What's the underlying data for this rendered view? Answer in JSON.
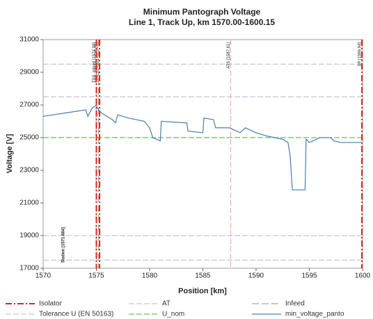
{
  "chart_data": {
    "type": "line",
    "title": "Minimum Pantograph Voltage",
    "subtitle": "Line 1, Track Up, km 1570.00-1600.15",
    "x_label": "Position [km]",
    "y_label": "Voltage [V]",
    "xlim": [
      1570,
      1600
    ],
    "ylim": [
      17000,
      31000
    ],
    "xticks": [
      1570,
      1575,
      1580,
      1585,
      1590,
      1595,
      1600
    ],
    "yticks": [
      17000,
      19000,
      21000,
      23000,
      25000,
      27000,
      29000,
      31000
    ],
    "x": [
      1570,
      1572,
      1574,
      1574.2,
      1574.6,
      1575,
      1575.1,
      1575.5,
      1576,
      1576.5,
      1576.8,
      1577,
      1578,
      1579.5,
      1580,
      1580.3,
      1581,
      1581.1,
      1583.5,
      1583.6,
      1585,
      1585.1,
      1586,
      1586.2,
      1587.5,
      1588.5,
      1589,
      1590,
      1591,
      1592.5,
      1593,
      1593.2,
      1593.4,
      1594.6,
      1594.7,
      1595,
      1596,
      1597,
      1597.3,
      1598,
      1600
    ],
    "series": [
      {
        "name": "min_voltage_panto",
        "color": "#4a7ab0",
        "values": [
          26300,
          26500,
          26700,
          26300,
          26800,
          27000,
          26800,
          26500,
          26300,
          26100,
          25900,
          26400,
          26200,
          26000,
          25600,
          25000,
          24800,
          26000,
          25900,
          25400,
          25300,
          26200,
          26100,
          25600,
          25600,
          25300,
          25600,
          25300,
          25100,
          24900,
          24700,
          23900,
          21800,
          21800,
          24900,
          24700,
          25000,
          25000,
          24800,
          24700,
          24700
        ]
      }
    ],
    "reference_styles": [
      {
        "name": "Isolator",
        "color": "#e0201c",
        "dash": "9 3 2 3",
        "width": 2
      },
      {
        "name": "AT",
        "color": "#f0a0a0",
        "dash": "8 3",
        "width": 1
      },
      {
        "name": "Infeed",
        "color": "#8a8f99",
        "dash": "10 4",
        "width": 1
      },
      {
        "name": "Tolerance U (EN 50163)",
        "color": "#b0b8c8",
        "dash": "8 3",
        "width": 1
      },
      {
        "name": "U_nom",
        "color": "#4aaa3a",
        "dash": "8 3",
        "width": 1
      }
    ],
    "vlines": [
      {
        "style": 2,
        "x": 1574.98,
        "label": "TSS_infeed [1574.98]"
      },
      {
        "style": 2,
        "x": 1575.21,
        "label": "TSS_infeed [1575.21]"
      },
      {
        "style": 0,
        "x": 1575.0
      },
      {
        "style": 0,
        "x": 1575.3
      },
      {
        "style": 1,
        "x": 1587.61,
        "label": "ATS [1587.61]"
      },
      {
        "style": 0,
        "x": 1599.94,
        "label": "SP [1599.94]"
      }
    ],
    "hlines": [
      {
        "style": 3,
        "y": 29500
      },
      {
        "style": 3,
        "y": 27500
      },
      {
        "style": 4,
        "y": 25000
      },
      {
        "style": 3,
        "y": 19000
      },
      {
        "style": 3,
        "y": 17500
      }
    ],
    "annotations": [
      {
        "text": "Station [1571.884]",
        "x": 1571.884
      }
    ]
  }
}
